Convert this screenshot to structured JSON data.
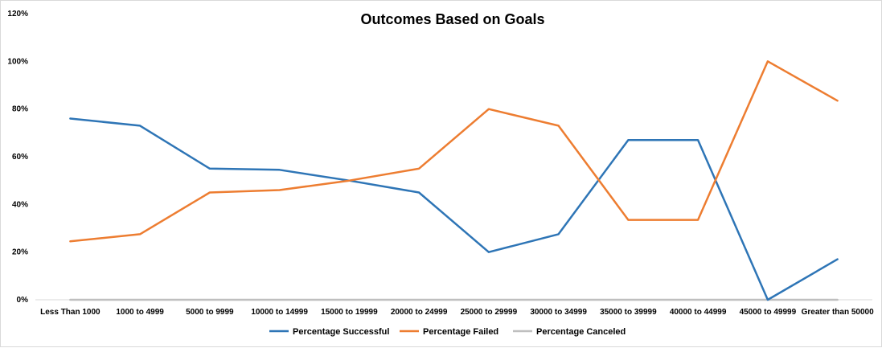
{
  "chart_data": {
    "type": "line",
    "title": "Outcomes Based on Goals",
    "xlabel": "",
    "ylabel": "",
    "categories": [
      "Less Than 1000",
      "1000 to 4999",
      "5000 to 9999",
      "10000 to 14999",
      "15000 to 19999",
      "20000 to 24999",
      "25000 to 29999",
      "30000 to 34999",
      "35000 to 39999",
      "40000 to 44999",
      "45000 to 49999",
      "Greater than 50000"
    ],
    "ylim": [
      0,
      120
    ],
    "yticks": [
      "0%",
      "20%",
      "40%",
      "60%",
      "80%",
      "100%",
      "120%"
    ],
    "grid": false,
    "legend_position": "bottom",
    "series": [
      {
        "name": "Percentage Successful",
        "color": "#2e75b6",
        "values": [
          76,
          73,
          55,
          54.5,
          50,
          45,
          20,
          27.5,
          67,
          67,
          0,
          17
        ]
      },
      {
        "name": "Percentage Failed",
        "color": "#ed7d31",
        "values": [
          24.5,
          27.5,
          45,
          46,
          50,
          55,
          80,
          73,
          33.5,
          33.5,
          100,
          83.5
        ]
      },
      {
        "name": "Percentage Canceled",
        "color": "#bfbfbf",
        "values": [
          0,
          0,
          0,
          0,
          0,
          0,
          0,
          0,
          0,
          0,
          0,
          0
        ]
      }
    ]
  }
}
